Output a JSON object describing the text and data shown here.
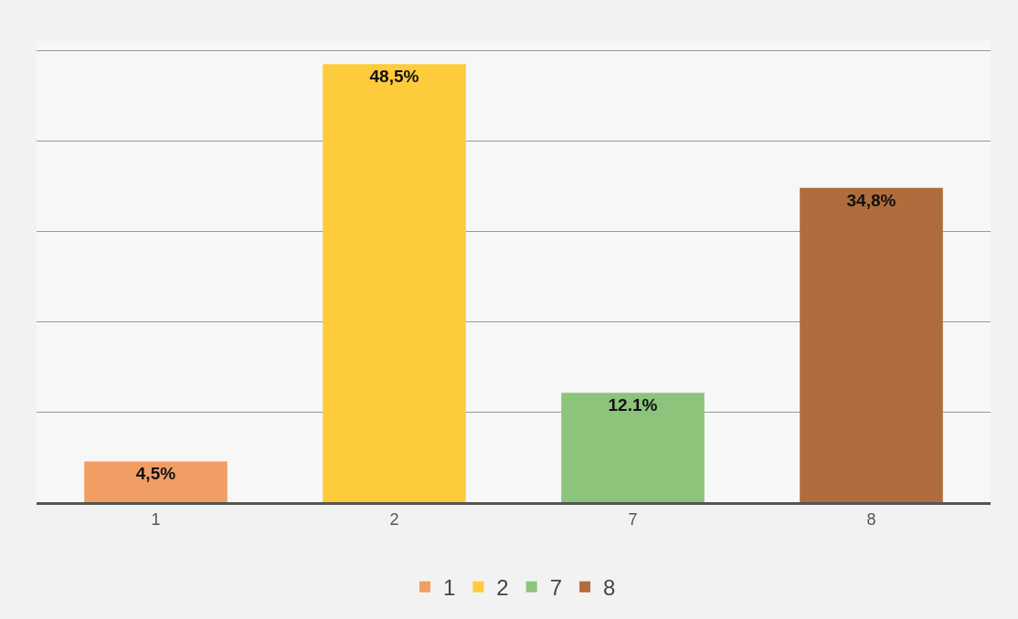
{
  "chart_data": {
    "type": "bar",
    "categories": [
      "1",
      "2",
      "7",
      "8"
    ],
    "series": [
      {
        "name": "1",
        "color": "#f19e65",
        "values": [
          4.5,
          null,
          null,
          null
        ],
        "value_labels": [
          "4,5%",
          null,
          null,
          null
        ]
      },
      {
        "name": "2",
        "color": "#fdcb3c",
        "values": [
          null,
          48.5,
          null,
          null
        ],
        "value_labels": [
          null,
          "48,5%",
          null,
          null
        ]
      },
      {
        "name": "7",
        "color": "#8dc47b",
        "values": [
          null,
          null,
          12.1,
          null
        ],
        "value_labels": [
          null,
          null,
          "12.1%",
          null
        ]
      },
      {
        "name": "8",
        "color": "#b06c3c",
        "values": [
          null,
          null,
          null,
          34.8
        ],
        "value_labels": [
          null,
          null,
          null,
          "34,8%"
        ]
      }
    ],
    "grid": "y",
    "legend": "bottom",
    "tick_labels": "x"
  }
}
